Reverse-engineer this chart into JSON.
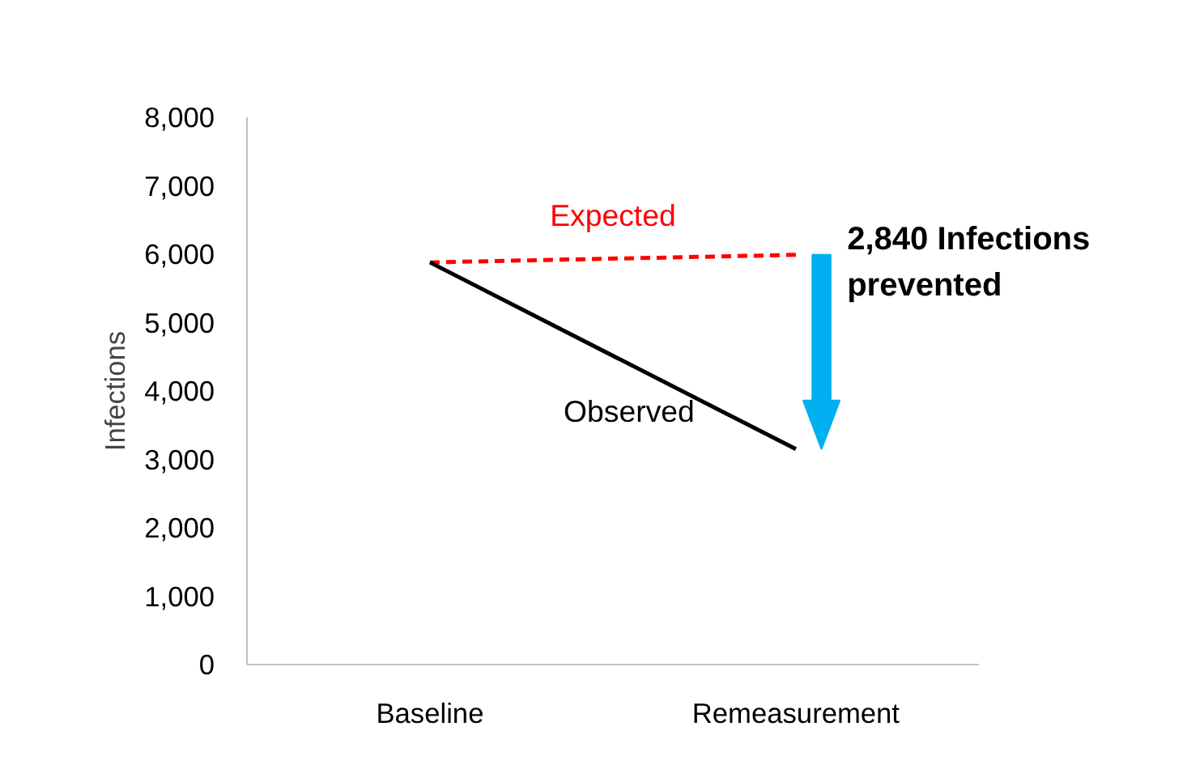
{
  "chart_data": {
    "type": "line",
    "ylabel": "Infections",
    "categories": [
      "Baseline",
      "Remeasurement"
    ],
    "series": [
      {
        "name": "Expected",
        "color": "#ff0000",
        "values": [
          5880,
          5990
        ],
        "line_style": "dashed"
      },
      {
        "name": "Observed",
        "color": "#000000",
        "values": [
          5880,
          3150
        ],
        "line_style": "solid"
      }
    ],
    "ylim": [
      0,
      8000
    ],
    "yticks": [
      {
        "value": 0,
        "label": "0"
      },
      {
        "value": 1000,
        "label": "1,000"
      },
      {
        "value": 2000,
        "label": "2,000"
      },
      {
        "value": 3000,
        "label": "3,000"
      },
      {
        "value": 4000,
        "label": "4,000"
      },
      {
        "value": 5000,
        "label": "5,000"
      },
      {
        "value": 6000,
        "label": "6,000"
      },
      {
        "value": 7000,
        "label": "7,000"
      },
      {
        "value": 8000,
        "label": "8,000"
      }
    ],
    "annotations": [
      "2,840 Infections prevented"
    ],
    "grid": false,
    "marker": "none"
  }
}
